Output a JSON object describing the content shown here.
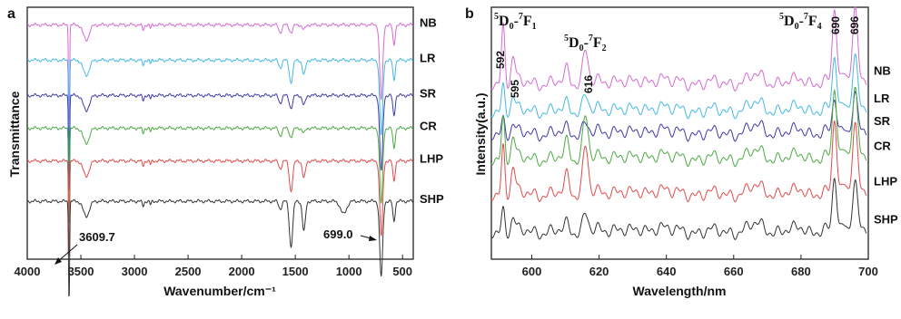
{
  "chart_data": [
    {
      "panel": "a",
      "type": "line",
      "xlabel": "Wavenumber/cm⁻¹",
      "ylabel": "Transmittance",
      "xlim": [
        4000,
        400
      ],
      "xticks": [
        4000,
        3500,
        3000,
        2500,
        2000,
        1500,
        1000,
        500
      ],
      "annotations": [
        "3609.7",
        "699.0"
      ],
      "series": [
        {
          "name": "NB",
          "color": "#d36bd3",
          "baseline": 0.93
        },
        {
          "name": "LR",
          "color": "#45b9e5",
          "baseline": 0.79
        },
        {
          "name": "SR",
          "color": "#3e3aa8",
          "baseline": 0.65
        },
        {
          "name": "CR",
          "color": "#4caa43",
          "baseline": 0.52
        },
        {
          "name": "LHP",
          "color": "#e34a4a",
          "baseline": 0.39
        },
        {
          "name": "SHP",
          "color": "#333333",
          "baseline": 0.23
        }
      ]
    },
    {
      "panel": "b",
      "type": "line",
      "xlabel": "Wavelength/nm",
      "ylabel": "Intensity(a.u.)",
      "xlim": [
        588,
        700
      ],
      "xticks": [
        600,
        620,
        640,
        660,
        680,
        700
      ],
      "transitions": [
        "5D0-7F1",
        "5D0-7F2",
        "5D0-7F4"
      ],
      "peaks": [
        592,
        595,
        616,
        690,
        696
      ],
      "series": [
        {
          "name": "NB",
          "color": "#d36bd3",
          "baseline": 0.7
        },
        {
          "name": "LR",
          "color": "#45b9e5",
          "baseline": 0.59
        },
        {
          "name": "SR",
          "color": "#3e3aa8",
          "baseline": 0.5
        },
        {
          "name": "CR",
          "color": "#4caa43",
          "baseline": 0.4
        },
        {
          "name": "LHP",
          "color": "#e34a4a",
          "baseline": 0.26
        },
        {
          "name": "SHP",
          "color": "#333333",
          "baseline": 0.11
        }
      ]
    }
  ],
  "labels": {
    "panel_a": "a",
    "panel_b": "b",
    "ann_3609": "3609.7",
    "ann_699": "699.0",
    "peak_592": "592",
    "peak_595": "595",
    "peak_616": "616",
    "peak_690": "690",
    "peak_696": "696"
  }
}
